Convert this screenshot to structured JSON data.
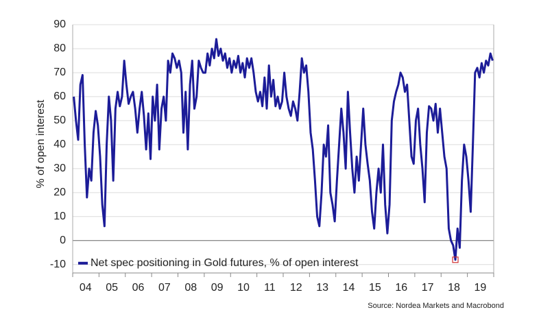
{
  "chart_data": {
    "type": "line",
    "y_label": "% of open interest",
    "source": "Source: Nordea Markets and Macrobond",
    "categories": [
      null,
      null,
      null,
      null,
      null,
      null,
      "04",
      null,
      null,
      null,
      null,
      null,
      null,
      null,
      null,
      null,
      null,
      null,
      "05",
      null,
      null,
      null,
      null,
      null,
      null,
      null,
      null,
      null,
      null,
      null,
      "06",
      null,
      null,
      null,
      null,
      null,
      null,
      null,
      null,
      null,
      null,
      null,
      "07",
      null,
      null,
      null,
      null,
      null,
      null,
      null,
      null,
      null,
      null,
      null,
      "08",
      null,
      null,
      null,
      null,
      null,
      null,
      null,
      null,
      null,
      null,
      null,
      "09",
      null,
      null,
      null,
      null,
      null,
      null,
      null,
      null,
      null,
      null,
      null,
      "10",
      null,
      null,
      null,
      null,
      null,
      null,
      null,
      null,
      null,
      null,
      null,
      "11",
      null,
      null,
      null,
      null,
      null,
      null,
      null,
      null,
      null,
      null,
      null,
      "12",
      null,
      null,
      null,
      null,
      null,
      null,
      null,
      null,
      null,
      null,
      null,
      "13",
      null,
      null,
      null,
      null,
      null,
      null,
      null,
      null,
      null,
      null,
      null,
      "14",
      null,
      null,
      null,
      null,
      null,
      null,
      null,
      null,
      null,
      null,
      null,
      "15",
      null,
      null,
      null,
      null,
      null,
      null,
      null,
      null,
      null,
      null,
      null,
      "16",
      null,
      null,
      null,
      null,
      null,
      null,
      null,
      null,
      null,
      null,
      null,
      "17",
      null,
      null,
      null,
      null,
      null,
      null,
      null,
      null,
      null,
      null,
      null,
      "18",
      null,
      null,
      null,
      null,
      null,
      null,
      null,
      null,
      null,
      null,
      null,
      "19",
      null,
      null,
      null,
      null,
      null
    ],
    "series": [
      {
        "name": "Net spec positioning in Gold futures, % of open interest",
        "color": "#1c1c98",
        "values": [
          60,
          50,
          42,
          65,
          69,
          40,
          18,
          30,
          25,
          45,
          54,
          48,
          35,
          15,
          6,
          40,
          60,
          50,
          25,
          55,
          62,
          56,
          60,
          75,
          65,
          57,
          60,
          62,
          55,
          45,
          55,
          62,
          52,
          38,
          53,
          34,
          60,
          50,
          65,
          38,
          55,
          60,
          50,
          75,
          70,
          78,
          76,
          72,
          75,
          70,
          45,
          62,
          38,
          65,
          75,
          55,
          60,
          75,
          72,
          70,
          70,
          78,
          73,
          80,
          76,
          84,
          77,
          80,
          75,
          78,
          72,
          76,
          70,
          75,
          72,
          77,
          70,
          74,
          68,
          76,
          72,
          76,
          70,
          62,
          58,
          62,
          56,
          68,
          55,
          73,
          60,
          67,
          56,
          60,
          55,
          58,
          70,
          60,
          55,
          52,
          58,
          55,
          50,
          62,
          76,
          70,
          73,
          62,
          45,
          38,
          25,
          10,
          6,
          20,
          40,
          35,
          48,
          20,
          15,
          8,
          25,
          40,
          55,
          45,
          30,
          62,
          45,
          30,
          20,
          35,
          25,
          40,
          55,
          40,
          32,
          25,
          12,
          5,
          20,
          30,
          20,
          40,
          15,
          3,
          15,
          50,
          58,
          62,
          65,
          70,
          68,
          62,
          65,
          50,
          35,
          32,
          50,
          55,
          40,
          30,
          16,
          45,
          56,
          55,
          50,
          57,
          45,
          55,
          45,
          35,
          30,
          5,
          0,
          -2,
          -8,
          5,
          -3,
          25,
          40,
          35,
          25,
          12,
          40,
          70,
          72,
          68,
          74,
          70,
          75,
          73,
          78,
          75
        ]
      }
    ],
    "ylim": [
      -13.5,
      90
    ],
    "yticks": [
      -10,
      0,
      10,
      20,
      30,
      40,
      50,
      60,
      70,
      80,
      90
    ],
    "grid": true,
    "legend": "bottom-left"
  }
}
